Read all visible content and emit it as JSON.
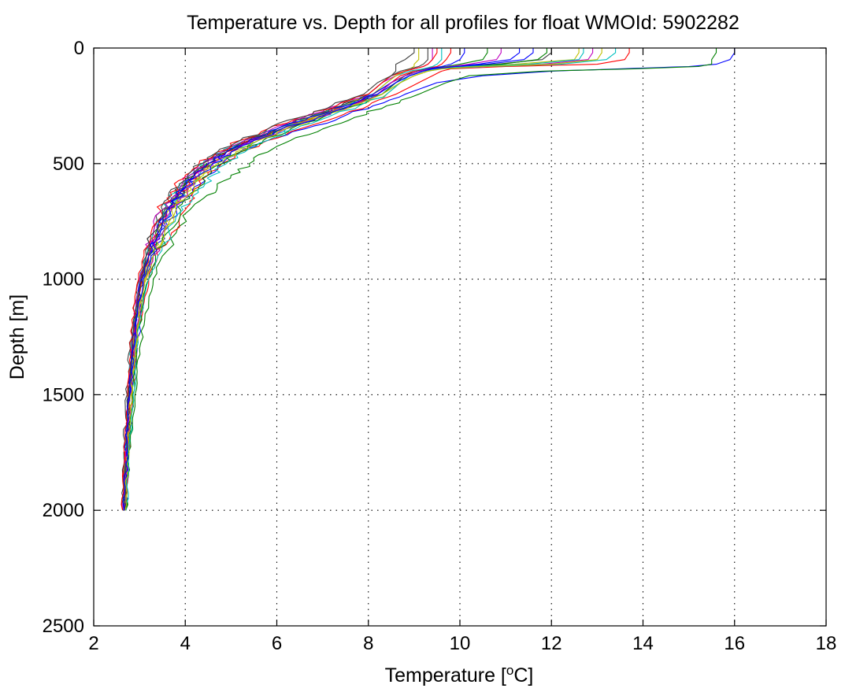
{
  "chart_data": {
    "type": "line",
    "title": "Temperature vs. Depth for all profiles for float WMOId: 5902282",
    "xlabel": "Temperature [°C]",
    "xlabel_main": "Temperature [",
    "xlabel_sup": "o",
    "xlabel_unit": "C]",
    "ylabel": "Depth [m]",
    "xlim": [
      2,
      18
    ],
    "ylim": [
      0,
      2500
    ],
    "y_reversed": true,
    "grid": true,
    "xticks": [
      2,
      4,
      6,
      8,
      10,
      12,
      14,
      16,
      18
    ],
    "yticks": [
      0,
      500,
      1000,
      1500,
      2000,
      2500
    ],
    "xtick_labels": [
      "2",
      "4",
      "6",
      "8",
      "10",
      "12",
      "14",
      "16",
      "18"
    ],
    "ytick_labels": [
      "0",
      "500",
      "1000",
      "1500",
      "2000",
      "2500"
    ],
    "colors": [
      "#0000ff",
      "#008000",
      "#ff0000",
      "#00bfbf",
      "#bf00bf",
      "#bfbf00",
      "#404040"
    ],
    "depth_levels": [
      0,
      20,
      50,
      70,
      80,
      90,
      100,
      120,
      150,
      200,
      250,
      300,
      350,
      400,
      450,
      500,
      550,
      600,
      650,
      700,
      800,
      900,
      1000,
      1100,
      1200,
      1300,
      1400,
      1500,
      1600,
      1700,
      1800,
      1900,
      2000
    ],
    "series": [
      {
        "values": [
          16.0,
          16.0,
          15.9,
          15.6,
          15.0,
          13.5,
          12.0,
          10.5,
          9.5,
          8.8,
          8.1,
          7.4,
          6.6,
          5.8,
          5.2,
          4.8,
          4.5,
          4.2,
          4.0,
          3.8,
          3.5,
          3.3,
          3.1,
          3.05,
          3.0,
          2.95,
          2.9,
          2.85,
          2.8,
          2.78,
          2.76,
          2.72,
          2.7
        ]
      },
      {
        "values": [
          15.6,
          15.6,
          15.5,
          15.5,
          15.2,
          13.8,
          11.8,
          10.2,
          9.7,
          9.1,
          8.4,
          7.7,
          7.0,
          6.3,
          5.8,
          5.4,
          5.0,
          4.7,
          4.4,
          4.1,
          3.8,
          3.5,
          3.3,
          3.2,
          3.1,
          3.0,
          2.95,
          2.9,
          2.85,
          2.8,
          2.76,
          2.72,
          2.7
        ]
      },
      {
        "values": [
          13.7,
          13.7,
          13.6,
          13.0,
          11.0,
          9.8,
          9.6,
          9.4,
          9.1,
          8.6,
          8.0,
          7.3,
          6.5,
          5.8,
          5.2,
          4.8,
          4.5,
          4.3,
          4.2,
          4.0,
          3.7,
          3.4,
          3.2,
          3.1,
          3.0,
          2.95,
          2.9,
          2.85,
          2.8,
          2.77,
          2.74,
          2.72,
          2.7
        ]
      },
      {
        "values": [
          13.4,
          13.4,
          13.2,
          12.2,
          10.6,
          9.6,
          9.3,
          9.0,
          8.7,
          8.3,
          7.6,
          6.9,
          6.2,
          5.6,
          5.0,
          4.6,
          4.3,
          4.1,
          3.9,
          3.7,
          3.5,
          3.3,
          3.1,
          3.0,
          2.95,
          2.9,
          2.85,
          2.82,
          2.78,
          2.75,
          2.72,
          2.7,
          2.68
        ]
      },
      {
        "values": [
          12.9,
          12.9,
          12.8,
          11.8,
          10.2,
          9.5,
          9.2,
          8.9,
          8.6,
          8.2,
          7.5,
          6.8,
          6.1,
          5.4,
          4.9,
          4.5,
          4.2,
          4.0,
          3.8,
          3.6,
          3.4,
          3.2,
          3.05,
          2.95,
          2.9,
          2.85,
          2.8,
          2.77,
          2.74,
          2.72,
          2.7,
          2.68,
          2.66
        ]
      },
      {
        "values": [
          12.6,
          12.6,
          12.5,
          11.2,
          10.0,
          9.5,
          9.3,
          9.0,
          8.7,
          8.4,
          7.7,
          7.0,
          6.2,
          5.5,
          5.0,
          4.6,
          4.3,
          4.1,
          3.9,
          3.7,
          3.5,
          3.3,
          3.15,
          3.05,
          2.98,
          2.92,
          2.88,
          2.84,
          2.8,
          2.77,
          2.74,
          2.71,
          2.69
        ]
      },
      {
        "values": [
          12.0,
          12.0,
          11.8,
          10.8,
          9.9,
          9.4,
          9.1,
          8.8,
          8.5,
          8.1,
          7.4,
          6.7,
          6.0,
          5.3,
          4.8,
          4.4,
          4.1,
          3.9,
          3.7,
          3.5,
          3.3,
          3.15,
          3.0,
          2.9,
          2.85,
          2.8,
          2.76,
          2.73,
          2.7,
          2.68,
          2.66,
          2.65,
          2.64
        ]
      },
      {
        "values": [
          11.3,
          11.3,
          11.1,
          10.4,
          9.8,
          9.4,
          9.2,
          8.9,
          8.6,
          8.3,
          7.6,
          6.9,
          6.2,
          5.5,
          4.9,
          4.5,
          4.2,
          4.0,
          3.8,
          3.6,
          3.4,
          3.2,
          3.05,
          2.95,
          2.9,
          2.85,
          2.82,
          2.78,
          2.75,
          2.73,
          2.7,
          2.68,
          2.66
        ]
      },
      {
        "values": [
          10.6,
          10.6,
          10.5,
          10.0,
          9.7,
          9.3,
          9.0,
          8.8,
          8.5,
          8.2,
          7.5,
          6.8,
          6.1,
          5.4,
          4.9,
          4.5,
          4.2,
          3.95,
          3.75,
          3.55,
          3.35,
          3.2,
          3.05,
          2.97,
          2.9,
          2.86,
          2.82,
          2.78,
          2.75,
          2.72,
          2.7,
          2.68,
          2.66
        ]
      },
      {
        "values": [
          9.8,
          9.8,
          9.7,
          9.6,
          9.5,
          9.2,
          9.0,
          8.7,
          8.5,
          8.2,
          7.5,
          6.8,
          6.1,
          5.4,
          4.9,
          4.5,
          4.2,
          4.0,
          3.8,
          3.6,
          3.4,
          3.2,
          3.05,
          2.97,
          2.9,
          2.85,
          2.82,
          2.78,
          2.75,
          2.73,
          2.7,
          2.68,
          2.66
        ]
      },
      {
        "values": [
          9.6,
          9.6,
          9.6,
          9.5,
          9.4,
          9.2,
          8.9,
          8.6,
          8.4,
          8.1,
          7.4,
          6.7,
          6.0,
          5.3,
          4.8,
          4.4,
          4.1,
          3.9,
          3.7,
          3.5,
          3.3,
          3.15,
          3.0,
          2.92,
          2.86,
          2.82,
          2.78,
          2.75,
          2.72,
          2.7,
          2.68,
          2.66,
          2.64
        ]
      },
      {
        "values": [
          9.4,
          9.4,
          9.4,
          9.3,
          9.2,
          9.0,
          8.8,
          8.6,
          8.3,
          8.0,
          7.3,
          6.6,
          5.9,
          5.3,
          4.8,
          4.4,
          4.1,
          3.9,
          3.7,
          3.5,
          3.3,
          3.15,
          3.0,
          2.92,
          2.87,
          2.83,
          2.8,
          2.77,
          2.74,
          2.72,
          2.7,
          2.68,
          2.66
        ]
      },
      {
        "values": [
          9.1,
          9.1,
          9.1,
          9.0,
          9.0,
          8.9,
          8.8,
          8.6,
          8.4,
          8.1,
          7.5,
          6.8,
          6.1,
          5.5,
          5.0,
          4.6,
          4.3,
          4.05,
          3.85,
          3.65,
          3.45,
          3.25,
          3.1,
          3.0,
          2.93,
          2.88,
          2.84,
          2.8,
          2.77,
          2.74,
          2.72,
          2.7,
          2.68
        ]
      },
      {
        "values": [
          9.0,
          9.0,
          8.8,
          8.6,
          8.6,
          8.6,
          8.6,
          8.5,
          8.3,
          8.0,
          7.4,
          6.7,
          6.0,
          5.4,
          4.9,
          4.5,
          4.2,
          4.0,
          3.8,
          3.6,
          3.4,
          3.2,
          3.05,
          2.97,
          2.9,
          2.86,
          2.82,
          2.78,
          2.75,
          2.73,
          2.7,
          2.68,
          2.66
        ]
      },
      {
        "values": [
          10.1,
          10.1,
          10.0,
          9.8,
          9.6,
          9.3,
          9.1,
          8.8,
          8.5,
          8.1,
          7.5,
          6.7,
          6.0,
          5.4,
          4.9,
          4.5,
          4.2,
          4.0,
          3.8,
          3.6,
          3.4,
          3.2,
          3.05,
          2.97,
          2.9,
          2.85,
          2.82,
          2.78,
          2.75,
          2.72,
          2.7,
          2.68,
          2.66
        ]
      },
      {
        "values": [
          11.9,
          11.9,
          11.7,
          10.9,
          9.9,
          9.4,
          9.1,
          8.8,
          8.6,
          8.3,
          7.7,
          7.0,
          6.3,
          5.7,
          5.2,
          4.8,
          4.5,
          4.3,
          4.1,
          3.9,
          3.6,
          3.35,
          3.2,
          3.08,
          3.0,
          2.94,
          2.89,
          2.85,
          2.81,
          2.78,
          2.75,
          2.72,
          2.7
        ]
      },
      {
        "values": [
          9.5,
          9.5,
          9.4,
          9.3,
          9.2,
          9.0,
          8.8,
          8.5,
          8.3,
          8.0,
          7.3,
          6.5,
          5.8,
          5.2,
          4.7,
          4.3,
          4.0,
          3.8,
          3.6,
          3.45,
          3.25,
          3.1,
          2.98,
          2.9,
          2.85,
          2.8,
          2.77,
          2.74,
          2.71,
          2.69,
          2.67,
          2.65,
          2.63
        ]
      },
      {
        "values": [
          12.7,
          12.7,
          12.6,
          11.5,
          10.1,
          9.5,
          9.2,
          8.9,
          8.7,
          8.4,
          7.8,
          7.1,
          6.4,
          5.8,
          5.3,
          4.9,
          4.6,
          4.4,
          4.15,
          3.95,
          3.65,
          3.4,
          3.2,
          3.08,
          3.0,
          2.94,
          2.9,
          2.86,
          2.82,
          2.79,
          2.76,
          2.73,
          2.71
        ]
      },
      {
        "values": [
          10.9,
          10.9,
          10.8,
          10.2,
          9.8,
          9.4,
          9.1,
          8.8,
          8.5,
          8.2,
          7.6,
          6.9,
          6.2,
          5.5,
          5.0,
          4.6,
          4.3,
          4.1,
          3.9,
          3.7,
          3.5,
          3.3,
          3.12,
          3.02,
          2.95,
          2.9,
          2.86,
          2.82,
          2.78,
          2.75,
          2.72,
          2.7,
          2.68
        ]
      },
      {
        "values": [
          13.1,
          13.1,
          13.0,
          12.0,
          10.4,
          9.6,
          9.3,
          9.0,
          8.7,
          8.3,
          7.6,
          6.9,
          6.2,
          5.6,
          5.1,
          4.7,
          4.4,
          4.2,
          4.0,
          3.8,
          3.55,
          3.3,
          3.12,
          3.02,
          2.96,
          2.91,
          2.86,
          2.82,
          2.79,
          2.76,
          2.73,
          2.71,
          2.69
        ]
      },
      {
        "values": [
          9.3,
          9.3,
          9.3,
          9.2,
          9.1,
          8.9,
          8.7,
          8.5,
          8.2,
          7.9,
          7.2,
          6.5,
          5.8,
          5.2,
          4.7,
          4.35,
          4.05,
          3.85,
          3.65,
          3.5,
          3.3,
          3.15,
          3.02,
          2.94,
          2.88,
          2.84,
          2.8,
          2.77,
          2.74,
          2.72,
          2.7,
          2.68,
          2.66
        ]
      },
      {
        "values": [
          11.6,
          11.6,
          11.4,
          10.6,
          9.9,
          9.4,
          9.2,
          8.9,
          8.6,
          8.2,
          7.6,
          6.9,
          6.1,
          5.5,
          5.0,
          4.6,
          4.3,
          4.05,
          3.85,
          3.65,
          3.45,
          3.25,
          3.08,
          2.98,
          2.92,
          2.87,
          2.83,
          2.79,
          2.76,
          2.73,
          2.71,
          2.69,
          2.67
        ]
      }
    ]
  }
}
